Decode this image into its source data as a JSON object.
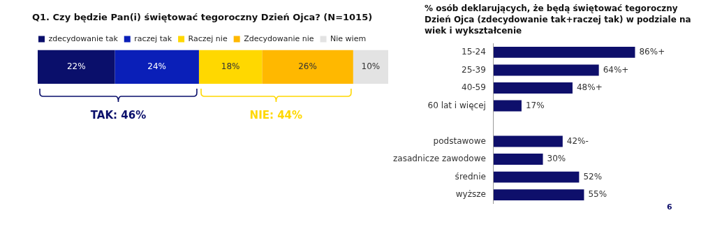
{
  "chart_data": [
    {
      "type": "bar",
      "orientation": "horizontal",
      "stacked": true,
      "title": "Q1. Czy będzie Pan(i) świętować tegoroczny Dzień Ojca? (N=1015)",
      "categories": [
        null
      ],
      "tick_labels": false,
      "legend": "top left",
      "series": [
        {
          "name": "zdecydowanie tak",
          "color": "#0a0f6b",
          "values": [
            22
          ],
          "value_labels": [
            "22%"
          ]
        },
        {
          "name": "raczej tak",
          "color": "#0a1fb8",
          "values": [
            24
          ],
          "value_labels": [
            "24%"
          ]
        },
        {
          "name": "Raczej nie",
          "color": "#ffd800",
          "values": [
            18
          ],
          "value_labels": [
            "18%"
          ]
        },
        {
          "name": "Zdecydowanie nie",
          "color": "#ffb800",
          "values": [
            26
          ],
          "value_labels": [
            "26%"
          ]
        },
        {
          "name": "Nie wiem",
          "color": "#e3e3e3",
          "values": [
            10
          ],
          "value_labels": [
            "10%"
          ]
        }
      ],
      "annotations": [
        "TAK: 46%",
        "NIE: 44%"
      ]
    },
    {
      "type": "bar",
      "orientation": "horizontal",
      "title": "% osób deklarujących, że będą świętować tegoroczny Dzień Ojca (zdecydowanie tak+raczej tak) w podziale na wiek i wykształcenie",
      "categories": [
        "15-24",
        "25-39",
        "40-59",
        "60 lat i więcej",
        null,
        "podstawowe",
        "zasadnicze zawodowe",
        "średnie",
        "wyższe"
      ],
      "tick_labels": "y",
      "series": [
        {
          "color": "#0e0f6b",
          "values": [
            86,
            64,
            48,
            17,
            null,
            42,
            30,
            52,
            55
          ],
          "value_labels": [
            "86%+",
            "64%+",
            "48%+",
            "17%",
            null,
            "42%-",
            "30%",
            "52%",
            "55%"
          ]
        }
      ],
      "annotations": [
        "6"
      ]
    }
  ]
}
